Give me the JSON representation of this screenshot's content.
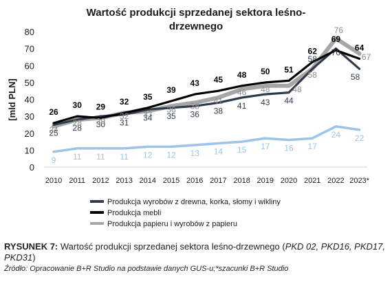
{
  "chart_data": {
    "type": "line",
    "title": "Wartość produkcji sprzedanej sektora leśno-drzewnego",
    "title_lines": [
      "Wartość produkcji sprzedanej sektora leśno-",
      "drzewnego"
    ],
    "ylabel": "[mld PLN]",
    "xlabel": "",
    "ylim": [
      0,
      80
    ],
    "yticks": [
      0,
      10,
      20,
      30,
      40,
      50,
      60,
      70,
      80
    ],
    "grid": false,
    "legend_position": "bottom",
    "categories": [
      "2010",
      "2011",
      "2012",
      "2013",
      "2014",
      "2015",
      "2016",
      "2017",
      "2018",
      "2019",
      "2020",
      "2021",
      "2022",
      "2023*"
    ],
    "series": [
      {
        "name": "Produkcja wyrobów z drewna, korka, słomy i wikliny",
        "color": "#2f3a4d",
        "label_color": "#2f3a4d",
        "values": [
          25,
          28,
          30,
          31,
          34,
          35,
          36,
          38,
          41,
          43,
          44,
          58,
          70,
          58
        ]
      },
      {
        "name": "Produkcja mebli",
        "color": "#000000",
        "label_color": "#000000",
        "values": [
          26,
          30,
          29,
          32,
          35,
          39,
          43,
          45,
          48,
          50,
          51,
          62,
          69,
          64
        ]
      },
      {
        "name": "Produkcja papieru i wyrobów z papieru",
        "color": "#a6a6a6",
        "label_color": "#8c8c8c",
        "values": [
          24,
          28,
          29,
          32,
          33,
          36,
          38,
          41,
          46,
          48,
          48,
          58,
          76,
          67
        ]
      },
      {
        "name": "",
        "color": "#9dc3e6",
        "label_color": "#9dc3e6",
        "values": [
          9,
          11,
          11,
          11,
          12,
          12,
          13,
          14,
          15,
          17,
          16,
          17,
          24,
          22
        ]
      }
    ]
  },
  "caption": {
    "label": "RYSUNEK 7:",
    "text": " Wartość produkcji sprzedanej sektora leśno-drzewnego (",
    "codes": "PKD 02, PKD16, PKD17, PKD31",
    "close": ")"
  },
  "source": "Źródło: Opracowanie B+R Studio na podstawie danych GUS-u;*szacunki B+R Studio"
}
